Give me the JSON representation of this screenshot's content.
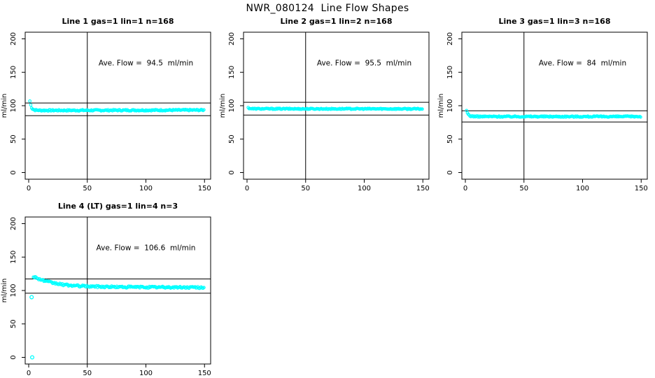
{
  "page_title": "NWR_080124  Line Flow Shapes",
  "colors": {
    "point": "#00ffff",
    "axis": "#000000",
    "background": "#ffffff"
  },
  "axes": {
    "ylabel": "ml/min",
    "x_ticks": [
      0,
      50,
      100,
      150
    ],
    "y_ticks": [
      0,
      50,
      100,
      150,
      200
    ],
    "xlim": [
      0,
      150
    ],
    "ylim": [
      0,
      200
    ],
    "vline_x": 50,
    "grid": false
  },
  "chart_data": [
    {
      "type": "scatter",
      "title": "Line 1 gas=1 lin=1 n=168",
      "annotation": "Ave. Flow =  94.5  ml/min",
      "ave_flow": 94.5,
      "n": 168,
      "ref_lines": [
        104.0,
        85.1
      ],
      "series_breakpoints": {
        "x": [
          1,
          2,
          3,
          5,
          10,
          40,
          80,
          120,
          150
        ],
        "y": [
          107,
          99,
          95.5,
          93.5,
          93,
          93,
          93.2,
          93.3,
          93.5
        ]
      },
      "outliers": [],
      "jitter": 1.0,
      "x_start": 1
    },
    {
      "type": "scatter",
      "title": "Line 2 gas=1 lin=2 n=168",
      "annotation": "Ave. Flow =  95.5  ml/min",
      "ave_flow": 95.5,
      "n": 168,
      "ref_lines": [
        105.1,
        86.0
      ],
      "series_breakpoints": {
        "x": [
          1,
          2,
          5,
          50,
          100,
          150
        ],
        "y": [
          97,
          96,
          95.4,
          95.3,
          95.3,
          95.2
        ]
      },
      "outliers": [],
      "jitter": 0.8,
      "x_start": 1
    },
    {
      "type": "scatter",
      "title": "Line 3 gas=1 lin=3 n=168",
      "annotation": "Ave. Flow =  84  ml/min",
      "ave_flow": 84,
      "n": 168,
      "ref_lines": [
        92.4,
        75.6
      ],
      "series_breakpoints": {
        "x": [
          1,
          2,
          4,
          10,
          50,
          100,
          150
        ],
        "y": [
          92,
          88,
          84.5,
          83.8,
          83.8,
          83.7,
          83.8
        ]
      },
      "outliers": [],
      "jitter": 0.9,
      "x_start": 1
    },
    {
      "type": "scatter",
      "title": "Line 4 (LT) gas=1 lin=4 n=3",
      "annotation": "Ave. Flow =  106.6  ml/min",
      "ave_flow": 106.6,
      "n": 3,
      "ref_lines": [
        117.3,
        95.9
      ],
      "series_breakpoints": {
        "x": [
          4,
          6,
          10,
          15,
          20,
          25,
          30,
          40,
          50,
          60,
          80,
          100,
          120,
          150
        ],
        "y": [
          121,
          119.5,
          116.5,
          113.5,
          111.5,
          110,
          108.5,
          107,
          106.3,
          105.8,
          105.2,
          105,
          104.8,
          104.5
        ]
      },
      "outliers": [
        {
          "x": 3,
          "y": 0
        },
        {
          "x": 2.5,
          "y": 90
        }
      ],
      "jitter": 1.4,
      "x_start": 4
    }
  ]
}
